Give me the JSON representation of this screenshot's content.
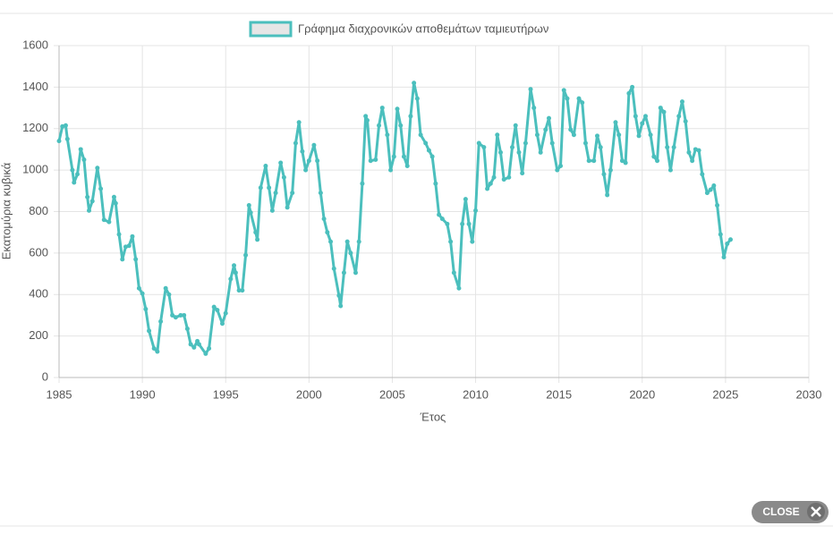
{
  "chart_data": {
    "type": "line",
    "ylabel": "Εκατομύρια κυβικά",
    "xlabel": "Έτος",
    "xlim": [
      1985,
      2030
    ],
    "xticks": [
      1985,
      1990,
      1995,
      2000,
      2005,
      2010,
      2015,
      2020,
      2025,
      2030
    ],
    "ylim": [
      0,
      1600
    ],
    "yticks": [
      0,
      200,
      400,
      600,
      800,
      1000,
      1200,
      1400,
      1600
    ],
    "grid": true,
    "legend": "top",
    "x": [
      1985.0,
      1985.2,
      1985.4,
      1985.5,
      1985.8,
      1985.9,
      1986.1,
      1986.3,
      1986.5,
      1986.7,
      1986.8,
      1987.0,
      1987.3,
      1987.5,
      1987.7,
      1988.0,
      1988.3,
      1988.4,
      1988.6,
      1988.8,
      1989.0,
      1989.2,
      1989.4,
      1989.6,
      1989.8,
      1990.0,
      1990.2,
      1990.4,
      1990.7,
      1990.9,
      1991.1,
      1991.4,
      1991.6,
      1991.8,
      1992.0,
      1992.3,
      1992.5,
      1992.7,
      1992.9,
      1993.1,
      1993.3,
      1993.4,
      1993.8,
      1994.0,
      1994.3,
      1994.5,
      1994.8,
      1995.0,
      1995.3,
      1995.5,
      1995.6,
      1995.8,
      1996.0,
      1996.2,
      1996.4,
      1996.5,
      1996.8,
      1996.9,
      1997.1,
      1997.4,
      1997.6,
      1997.8,
      1998.0,
      1998.3,
      1998.5,
      1998.7,
      1999.0,
      1999.2,
      1999.4,
      1999.6,
      1999.8,
      2000.0,
      2000.3,
      2000.5,
      2000.7,
      2000.9,
      2001.1,
      2001.3,
      2001.5,
      2001.8,
      2001.9,
      2002.1,
      2002.3,
      2002.5,
      2002.8,
      2003.0,
      2003.2,
      2003.4,
      2003.5,
      2003.7,
      2004.0,
      2004.2,
      2004.4,
      2004.7,
      2004.9,
      2005.1,
      2005.3,
      2005.5,
      2005.7,
      2005.9,
      2006.1,
      2006.3,
      2006.5,
      2006.7,
      2007.0,
      2007.2,
      2007.4,
      2007.6,
      2007.8,
      2008.0,
      2008.3,
      2008.5,
      2008.7,
      2009.0,
      2009.2,
      2009.4,
      2009.6,
      2009.8,
      2010.0,
      2010.2,
      2010.5,
      2010.7,
      2010.9,
      2011.1,
      2011.3,
      2011.5,
      2011.7,
      2012.0,
      2012.2,
      2012.4,
      2012.6,
      2012.8,
      2013.0,
      2013.3,
      2013.5,
      2013.7,
      2013.9,
      2014.2,
      2014.4,
      2014.6,
      2014.9,
      2015.1,
      2015.3,
      2015.5,
      2015.7,
      2015.9,
      2016.2,
      2016.4,
      2016.6,
      2016.8,
      2017.1,
      2017.3,
      2017.5,
      2017.7,
      2017.9,
      2018.1,
      2018.4,
      2018.6,
      2018.8,
      2019.0,
      2019.2,
      2019.4,
      2019.6,
      2019.8,
      2020.0,
      2020.2,
      2020.5,
      2020.7,
      2020.9,
      2021.1,
      2021.3,
      2021.5,
      2021.7,
      2021.9,
      2022.2,
      2022.4,
      2022.6,
      2022.8,
      2023.0,
      2023.2,
      2023.4,
      2023.6,
      2023.9,
      2024.1,
      2024.3,
      2024.5,
      2024.7,
      2024.9,
      2025.1,
      2025.3
    ],
    "series": [
      {
        "name": "Γράφημα διαχρονικών αποθεμάτων ταμιευτήρων",
        "color": "#4bbfbd",
        "values": [
          1140,
          1210,
          1215,
          1150,
          1000,
          940,
          980,
          1100,
          1050,
          870,
          805,
          850,
          1010,
          910,
          760,
          750,
          870,
          840,
          690,
          570,
          630,
          635,
          680,
          570,
          430,
          405,
          330,
          225,
          140,
          125,
          270,
          430,
          400,
          300,
          290,
          300,
          300,
          235,
          160,
          145,
          175,
          160,
          115,
          140,
          340,
          325,
          260,
          310,
          475,
          540,
          505,
          420,
          420,
          590,
          830,
          795,
          700,
          665,
          915,
          1020,
          915,
          805,
          890,
          1035,
          965,
          820,
          890,
          1130,
          1230,
          1090,
          1000,
          1045,
          1120,
          1045,
          890,
          765,
          700,
          655,
          525,
          395,
          345,
          505,
          655,
          600,
          505,
          655,
          935,
          1260,
          1240,
          1045,
          1050,
          1215,
          1300,
          1170,
          1000,
          1065,
          1295,
          1215,
          1065,
          1020,
          1260,
          1420,
          1345,
          1170,
          1130,
          1095,
          1065,
          935,
          785,
          765,
          740,
          655,
          505,
          430,
          740,
          860,
          740,
          655,
          805,
          1130,
          1110,
          910,
          935,
          965,
          1170,
          1085,
          955,
          965,
          1110,
          1215,
          1085,
          985,
          1130,
          1390,
          1300,
          1170,
          1085,
          1195,
          1250,
          1130,
          1000,
          1020,
          1385,
          1345,
          1195,
          1170,
          1345,
          1325,
          1130,
          1045,
          1045,
          1165,
          1110,
          980,
          880,
          1000,
          1230,
          1170,
          1045,
          1035,
          1370,
          1400,
          1260,
          1165,
          1225,
          1260,
          1170,
          1065,
          1045,
          1300,
          1280,
          1110,
          1000,
          1110,
          1260,
          1330,
          1235,
          1085,
          1045,
          1100,
          1095,
          980,
          890,
          905,
          925,
          830,
          690,
          580,
          645,
          665
        ]
      }
    ]
  },
  "close_button": "CLOSE"
}
